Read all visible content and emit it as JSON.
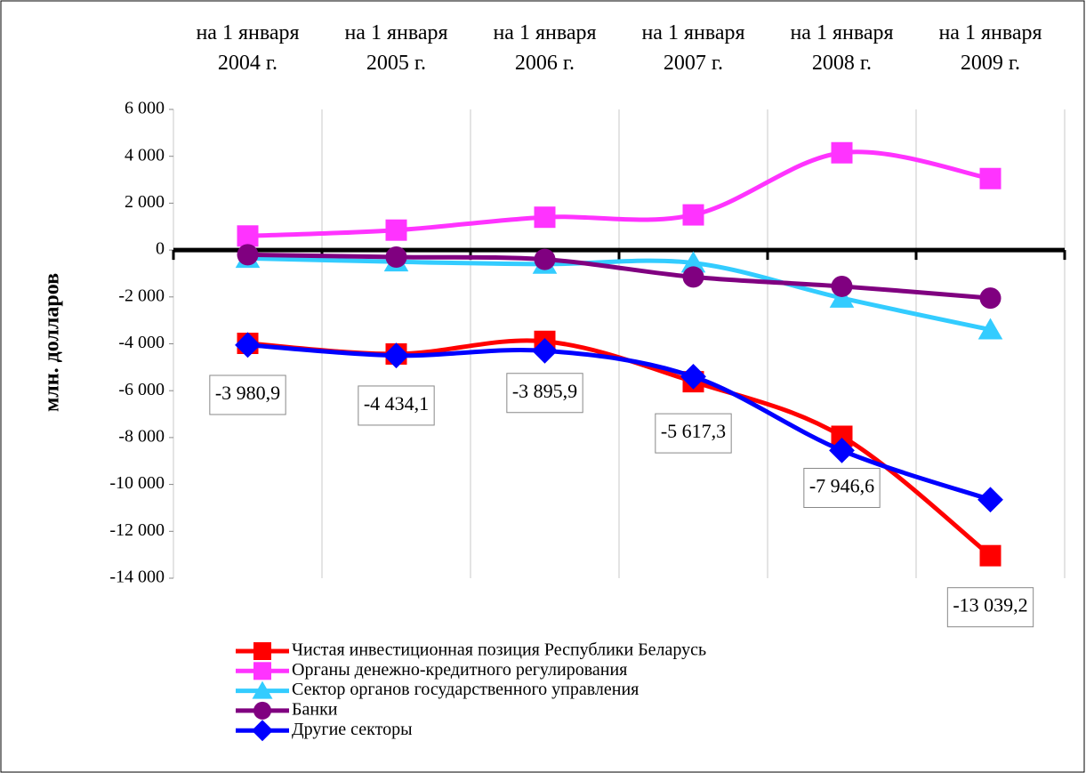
{
  "chart_data": {
    "type": "line",
    "y_label": "млн. долларов",
    "categories": [
      "на 1 января\n2004 г.",
      "на 1 января\n2005 г.",
      "на 1 января\n2006 г.",
      "на 1 января\n2007 г.",
      "на 1 января\n2008 г.",
      "на 1 января\n2009 г."
    ],
    "ylim": [
      -14000,
      6000
    ],
    "yticks": [
      {
        "value": 6000,
        "label": "6 000"
      },
      {
        "value": 4000,
        "label": "4 000"
      },
      {
        "value": 2000,
        "label": "2 000"
      },
      0,
      {
        "value": -2000,
        "label": "-2 000"
      },
      {
        "value": -4000,
        "label": "-4 000"
      },
      {
        "value": -6000,
        "label": "-6 000"
      },
      {
        "value": -8000,
        "label": "-8 000"
      },
      {
        "value": -10000,
        "label": "-10 000"
      },
      {
        "value": -12000,
        "label": "-12 000"
      },
      {
        "value": -14000,
        "label": "-14 000"
      }
    ],
    "grid": true,
    "series": [
      {
        "name": "Чистая инвестиционная позиция Республики Беларусь",
        "color": "#ff0000",
        "marker": "square",
        "values": [
          -3980.9,
          -4434.1,
          -3895.9,
          -5617.3,
          -7946.6,
          -13039.2
        ],
        "value_labels": [
          "-3 980,9",
          "-4 434,1",
          "-3 895,9",
          "-5 617,3",
          "-7 946,6",
          "-13 039,2"
        ]
      },
      {
        "name": "Органы денежно-кредитного регулирования",
        "color": "#ff33ff",
        "marker": "square",
        "values": [
          600,
          850,
          1400,
          1500,
          4150,
          3050
        ]
      },
      {
        "name": "Сектор органов государственного управления",
        "color": "#33ccff",
        "marker": "triangle",
        "values": [
          -350,
          -500,
          -600,
          -550,
          -2050,
          -3400
        ]
      },
      {
        "name": "Банки",
        "color": "#800080",
        "marker": "circle",
        "values": [
          -200,
          -300,
          -400,
          -1150,
          -1550,
          -2050
        ]
      },
      {
        "name": "Другие секторы",
        "color": "#0000ff",
        "marker": "diamond",
        "values": [
          -4050,
          -4500,
          -4300,
          -5400,
          -8550,
          -10650
        ]
      }
    ]
  }
}
